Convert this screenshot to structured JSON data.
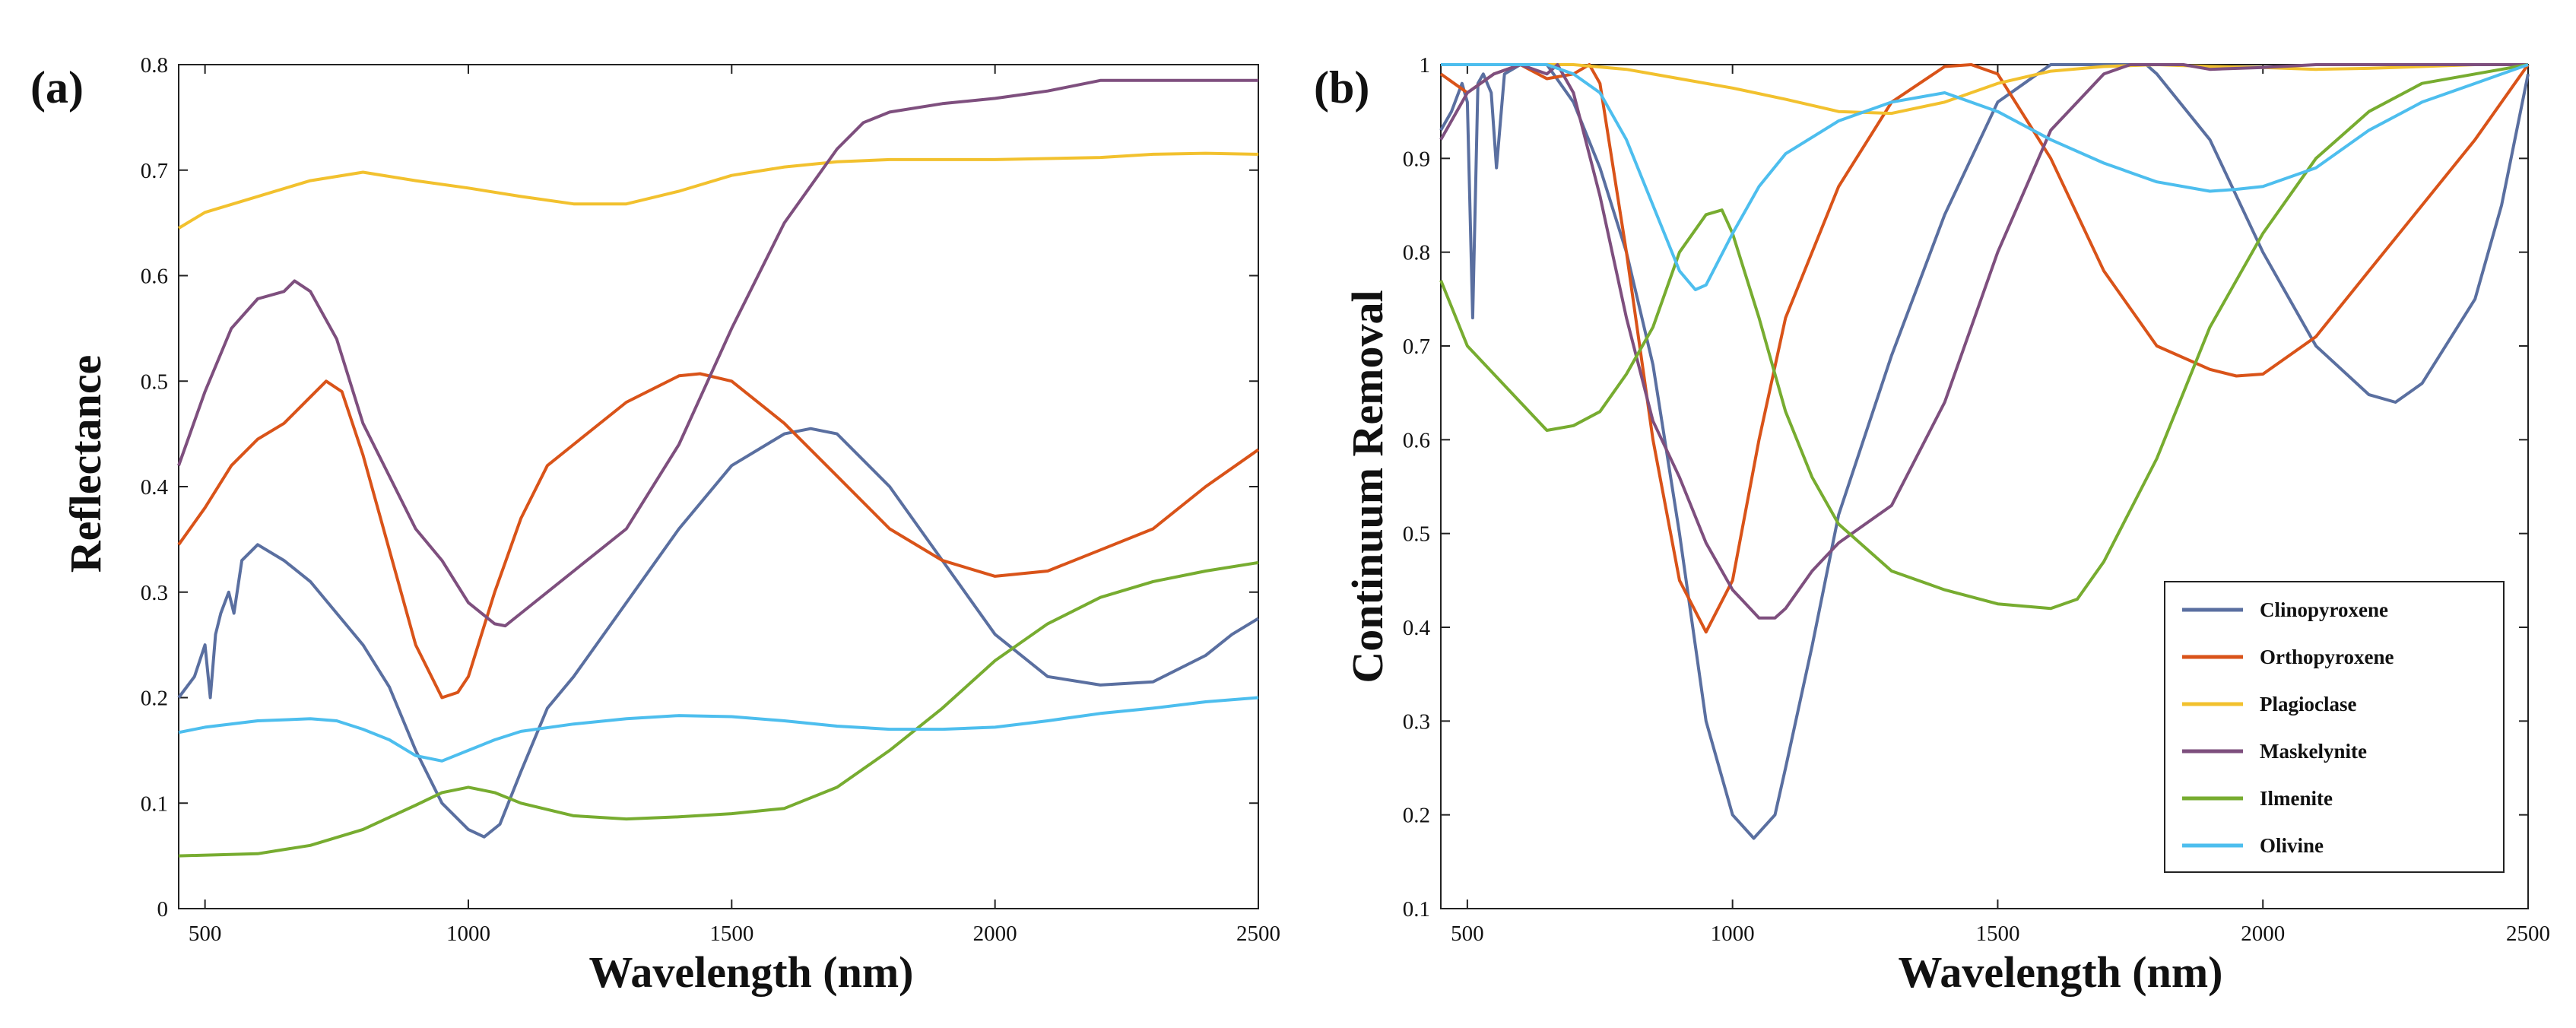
{
  "chart_data": [
    {
      "type": "line",
      "panel_label": "(a)",
      "xlabel": "Wavelength (nm)",
      "ylabel": "Reflectance",
      "xlim": [
        450,
        2500
      ],
      "ylim": [
        0,
        0.8
      ],
      "xticks": [
        500,
        1000,
        1500,
        2000,
        2500
      ],
      "yticks": [
        0,
        0.1,
        0.2,
        0.3,
        0.4,
        0.5,
        0.6,
        0.7,
        0.8
      ],
      "grid": false,
      "series": [
        {
          "name": "Clinopyroxene",
          "color": "#5a6fa0",
          "x": [
            450,
            480,
            500,
            510,
            520,
            530,
            545,
            555,
            570,
            600,
            650,
            700,
            750,
            800,
            850,
            900,
            950,
            1000,
            1030,
            1060,
            1100,
            1150,
            1200,
            1300,
            1400,
            1500,
            1600,
            1650,
            1700,
            1800,
            1900,
            2000,
            2100,
            2200,
            2300,
            2400,
            2450,
            2500
          ],
          "y": [
            0.2,
            0.22,
            0.25,
            0.2,
            0.26,
            0.28,
            0.3,
            0.28,
            0.33,
            0.345,
            0.33,
            0.31,
            0.28,
            0.25,
            0.21,
            0.15,
            0.1,
            0.075,
            0.068,
            0.08,
            0.13,
            0.19,
            0.22,
            0.29,
            0.36,
            0.42,
            0.45,
            0.455,
            0.45,
            0.4,
            0.33,
            0.26,
            0.22,
            0.212,
            0.215,
            0.24,
            0.26,
            0.275
          ]
        },
        {
          "name": "Orthopyroxene",
          "color": "#d95319",
          "x": [
            450,
            500,
            550,
            600,
            650,
            700,
            730,
            760,
            800,
            850,
            900,
            950,
            980,
            1000,
            1050,
            1100,
            1150,
            1200,
            1300,
            1400,
            1440,
            1500,
            1600,
            1700,
            1800,
            1900,
            2000,
            2100,
            2200,
            2300,
            2400,
            2500
          ],
          "y": [
            0.345,
            0.38,
            0.42,
            0.445,
            0.46,
            0.485,
            0.5,
            0.49,
            0.43,
            0.34,
            0.25,
            0.2,
            0.205,
            0.22,
            0.3,
            0.37,
            0.42,
            0.44,
            0.48,
            0.505,
            0.507,
            0.5,
            0.46,
            0.41,
            0.36,
            0.33,
            0.315,
            0.32,
            0.34,
            0.36,
            0.4,
            0.435
          ]
        },
        {
          "name": "Plagioclase",
          "color": "#f2c12e",
          "x": [
            450,
            500,
            600,
            700,
            800,
            900,
            1000,
            1100,
            1200,
            1300,
            1400,
            1500,
            1600,
            1700,
            1800,
            2000,
            2200,
            2300,
            2400,
            2500
          ],
          "y": [
            0.645,
            0.66,
            0.675,
            0.69,
            0.698,
            0.69,
            0.683,
            0.675,
            0.668,
            0.668,
            0.68,
            0.695,
            0.703,
            0.708,
            0.71,
            0.71,
            0.712,
            0.715,
            0.716,
            0.715
          ]
        },
        {
          "name": "Maskelynite",
          "color": "#7e4f7e",
          "x": [
            450,
            500,
            550,
            600,
            650,
            670,
            700,
            750,
            800,
            900,
            950,
            1000,
            1050,
            1070,
            1100,
            1200,
            1300,
            1400,
            1500,
            1600,
            1700,
            1750,
            1800,
            1900,
            2000,
            2100,
            2200,
            2300,
            2400,
            2500
          ],
          "y": [
            0.42,
            0.49,
            0.55,
            0.578,
            0.585,
            0.595,
            0.585,
            0.54,
            0.46,
            0.36,
            0.33,
            0.29,
            0.27,
            0.268,
            0.28,
            0.32,
            0.36,
            0.44,
            0.55,
            0.65,
            0.72,
            0.745,
            0.755,
            0.763,
            0.768,
            0.775,
            0.785,
            0.785,
            0.785,
            0.785
          ]
        },
        {
          "name": "Ilmenite",
          "color": "#77ac30",
          "x": [
            450,
            600,
            700,
            800,
            900,
            950,
            1000,
            1050,
            1100,
            1200,
            1300,
            1400,
            1500,
            1600,
            1700,
            1800,
            1900,
            2000,
            2100,
            2200,
            2300,
            2400,
            2500
          ],
          "y": [
            0.05,
            0.052,
            0.06,
            0.075,
            0.098,
            0.11,
            0.115,
            0.11,
            0.1,
            0.088,
            0.085,
            0.087,
            0.09,
            0.095,
            0.115,
            0.15,
            0.19,
            0.235,
            0.27,
            0.295,
            0.31,
            0.32,
            0.328
          ]
        },
        {
          "name": "Olivine",
          "color": "#4dbeee",
          "x": [
            450,
            500,
            600,
            700,
            750,
            800,
            850,
            900,
            950,
            1000,
            1050,
            1100,
            1200,
            1300,
            1400,
            1500,
            1600,
            1700,
            1800,
            1900,
            2000,
            2100,
            2200,
            2300,
            2400,
            2500
          ],
          "y": [
            0.167,
            0.172,
            0.178,
            0.18,
            0.178,
            0.17,
            0.16,
            0.145,
            0.14,
            0.15,
            0.16,
            0.168,
            0.175,
            0.18,
            0.183,
            0.182,
            0.178,
            0.173,
            0.17,
            0.17,
            0.172,
            0.178,
            0.185,
            0.19,
            0.196,
            0.2
          ]
        }
      ]
    },
    {
      "type": "line",
      "panel_label": "(b)",
      "xlabel": "Wavelength (nm)",
      "ylabel": "Continuum Removal",
      "xlim": [
        450,
        2500
      ],
      "ylim": [
        0.1,
        1
      ],
      "xticks": [
        500,
        1000,
        1500,
        2000,
        2500
      ],
      "yticks": [
        0.1,
        0.2,
        0.3,
        0.4,
        0.5,
        0.6,
        0.7,
        0.8,
        0.9,
        1
      ],
      "grid": false,
      "legend_position": "bottom-right",
      "series": [
        {
          "name": "Clinopyroxene",
          "color": "#5a6fa0",
          "x": [
            450,
            470,
            490,
            500,
            510,
            520,
            530,
            545,
            555,
            570,
            600,
            650,
            700,
            750,
            800,
            850,
            900,
            950,
            1000,
            1040,
            1080,
            1100,
            1150,
            1200,
            1300,
            1400,
            1500,
            1600,
            1700,
            1780,
            1800,
            1900,
            2000,
            2100,
            2200,
            2250,
            2300,
            2400,
            2450,
            2500
          ],
          "y": [
            0.93,
            0.95,
            0.98,
            0.96,
            0.73,
            0.98,
            0.99,
            0.97,
            0.89,
            0.99,
            1.0,
            1.0,
            0.96,
            0.89,
            0.8,
            0.68,
            0.5,
            0.3,
            0.2,
            0.175,
            0.2,
            0.25,
            0.38,
            0.52,
            0.69,
            0.84,
            0.96,
            1.0,
            1.0,
            1.0,
            0.99,
            0.92,
            0.8,
            0.7,
            0.648,
            0.64,
            0.66,
            0.75,
            0.85,
            0.99
          ]
        },
        {
          "name": "Orthopyroxene",
          "color": "#d95319",
          "x": [
            450,
            500,
            550,
            600,
            650,
            700,
            730,
            750,
            800,
            850,
            900,
            950,
            1000,
            1050,
            1100,
            1200,
            1300,
            1400,
            1450,
            1500,
            1600,
            1700,
            1800,
            1900,
            1950,
            2000,
            2100,
            2200,
            2300,
            2400,
            2500
          ],
          "y": [
            0.99,
            0.97,
            0.99,
            1.0,
            0.985,
            0.99,
            1.0,
            0.98,
            0.8,
            0.6,
            0.45,
            0.395,
            0.45,
            0.6,
            0.73,
            0.87,
            0.96,
            0.998,
            1.0,
            0.99,
            0.9,
            0.78,
            0.7,
            0.675,
            0.668,
            0.67,
            0.71,
            0.78,
            0.85,
            0.92,
            1.0
          ]
        },
        {
          "name": "Plagioclase",
          "color": "#f2c12e",
          "x": [
            450,
            600,
            700,
            800,
            900,
            1000,
            1100,
            1200,
            1300,
            1400,
            1500,
            1600,
            1700,
            1800,
            1900,
            2000,
            2100,
            2200,
            2300,
            2400,
            2500
          ],
          "y": [
            1.0,
            1.0,
            1.0,
            0.995,
            0.985,
            0.975,
            0.963,
            0.95,
            0.948,
            0.96,
            0.98,
            0.993,
            0.998,
            1.0,
            0.998,
            0.997,
            0.995,
            0.996,
            0.998,
            1.0,
            1.0
          ]
        },
        {
          "name": "Maskelynite",
          "color": "#7e4f7e",
          "x": [
            450,
            500,
            550,
            600,
            650,
            670,
            700,
            750,
            800,
            850,
            900,
            950,
            1000,
            1050,
            1080,
            1100,
            1150,
            1200,
            1300,
            1400,
            1500,
            1600,
            1700,
            1750,
            1800,
            1850,
            1900,
            2000,
            2100,
            2200,
            2300,
            2400,
            2500
          ],
          "y": [
            0.92,
            0.97,
            0.99,
            1.0,
            0.99,
            1.0,
            0.97,
            0.86,
            0.73,
            0.62,
            0.56,
            0.49,
            0.44,
            0.41,
            0.41,
            0.42,
            0.46,
            0.49,
            0.53,
            0.64,
            0.8,
            0.93,
            0.99,
            1.0,
            1.0,
            1.0,
            0.995,
            0.997,
            1.0,
            1.0,
            1.0,
            1.0,
            1.0
          ]
        },
        {
          "name": "Ilmenite",
          "color": "#77ac30",
          "x": [
            450,
            500,
            600,
            650,
            700,
            750,
            800,
            850,
            900,
            950,
            980,
            1000,
            1050,
            1100,
            1150,
            1200,
            1300,
            1400,
            1500,
            1600,
            1650,
            1700,
            1800,
            1900,
            2000,
            2100,
            2200,
            2300,
            2400,
            2500
          ],
          "y": [
            0.77,
            0.7,
            0.64,
            0.61,
            0.615,
            0.63,
            0.67,
            0.72,
            0.8,
            0.84,
            0.845,
            0.82,
            0.73,
            0.63,
            0.56,
            0.51,
            0.46,
            0.44,
            0.425,
            0.42,
            0.43,
            0.47,
            0.58,
            0.72,
            0.82,
            0.9,
            0.95,
            0.98,
            0.99,
            1.0
          ]
        },
        {
          "name": "Olivine",
          "color": "#4dbeee",
          "x": [
            450,
            550,
            650,
            700,
            750,
            800,
            850,
            900,
            930,
            950,
            1000,
            1050,
            1100,
            1200,
            1300,
            1400,
            1500,
            1600,
            1700,
            1800,
            1900,
            1950,
            2000,
            2100,
            2200,
            2300,
            2400,
            2500
          ],
          "y": [
            1.0,
            1.0,
            1.0,
            0.99,
            0.97,
            0.92,
            0.85,
            0.78,
            0.76,
            0.765,
            0.82,
            0.87,
            0.905,
            0.94,
            0.96,
            0.97,
            0.95,
            0.92,
            0.895,
            0.875,
            0.865,
            0.867,
            0.87,
            0.89,
            0.93,
            0.96,
            0.98,
            1.0
          ]
        }
      ]
    }
  ]
}
